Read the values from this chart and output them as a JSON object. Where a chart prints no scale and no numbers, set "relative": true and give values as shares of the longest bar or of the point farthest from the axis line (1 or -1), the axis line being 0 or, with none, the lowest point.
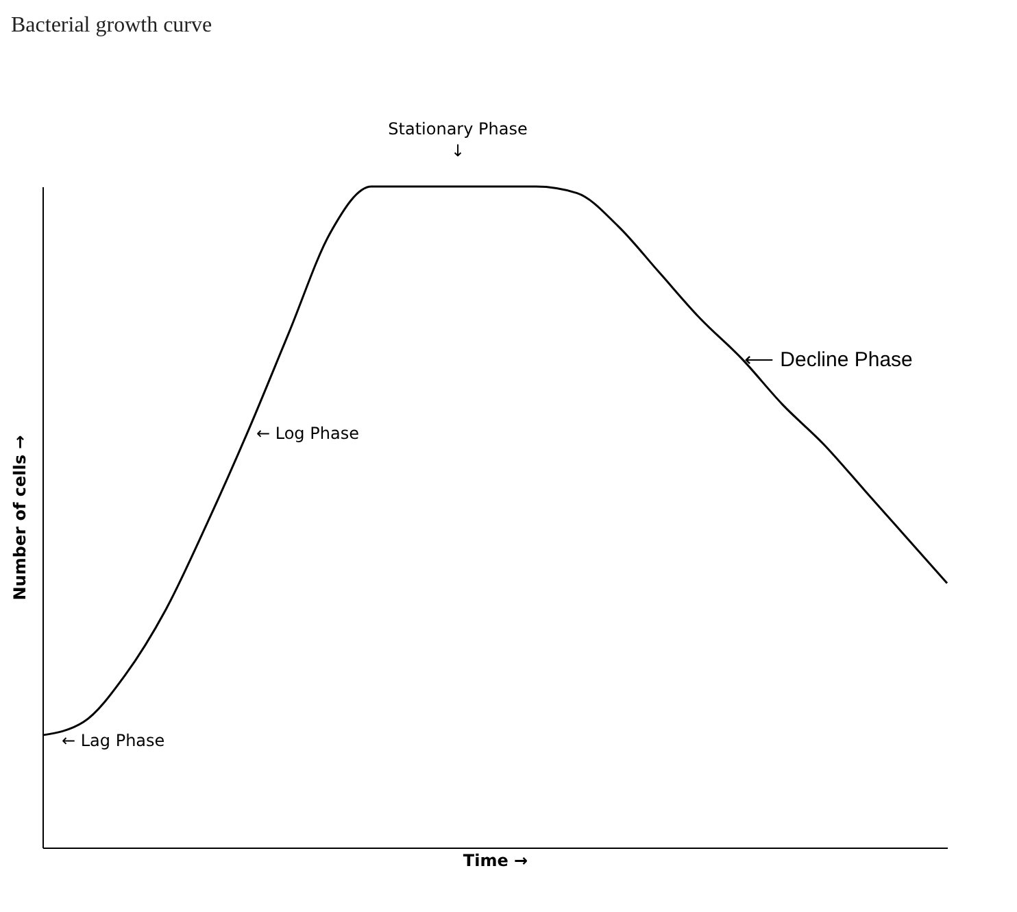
{
  "chart_data": {
    "type": "line",
    "title": "Bacterial growth curve",
    "xlabel": "Time →",
    "ylabel": "Number of cells →",
    "relative": true,
    "categories": [
      null,
      null,
      null,
      null,
      null,
      null,
      null,
      null,
      null,
      null,
      null,
      null,
      null,
      null,
      null,
      null,
      null,
      null,
      null,
      null,
      null,
      null,
      null
    ],
    "series": [
      {
        "color": "#000000",
        "values": [
          0.17,
          0.19,
          0.26,
          0.36,
          0.49,
          0.63,
          0.78,
          0.93,
          1.0,
          1.0,
          1.0,
          1.0,
          1.0,
          0.99,
          0.94,
          0.87,
          0.8,
          0.74,
          0.67,
          0.61,
          0.54,
          0.47,
          0.4
        ]
      }
    ],
    "annotations": [
      "← Lag Phase",
      "← Log Phase",
      "Stationary Phase\n↓",
      "⟵ Decline Phase"
    ]
  }
}
